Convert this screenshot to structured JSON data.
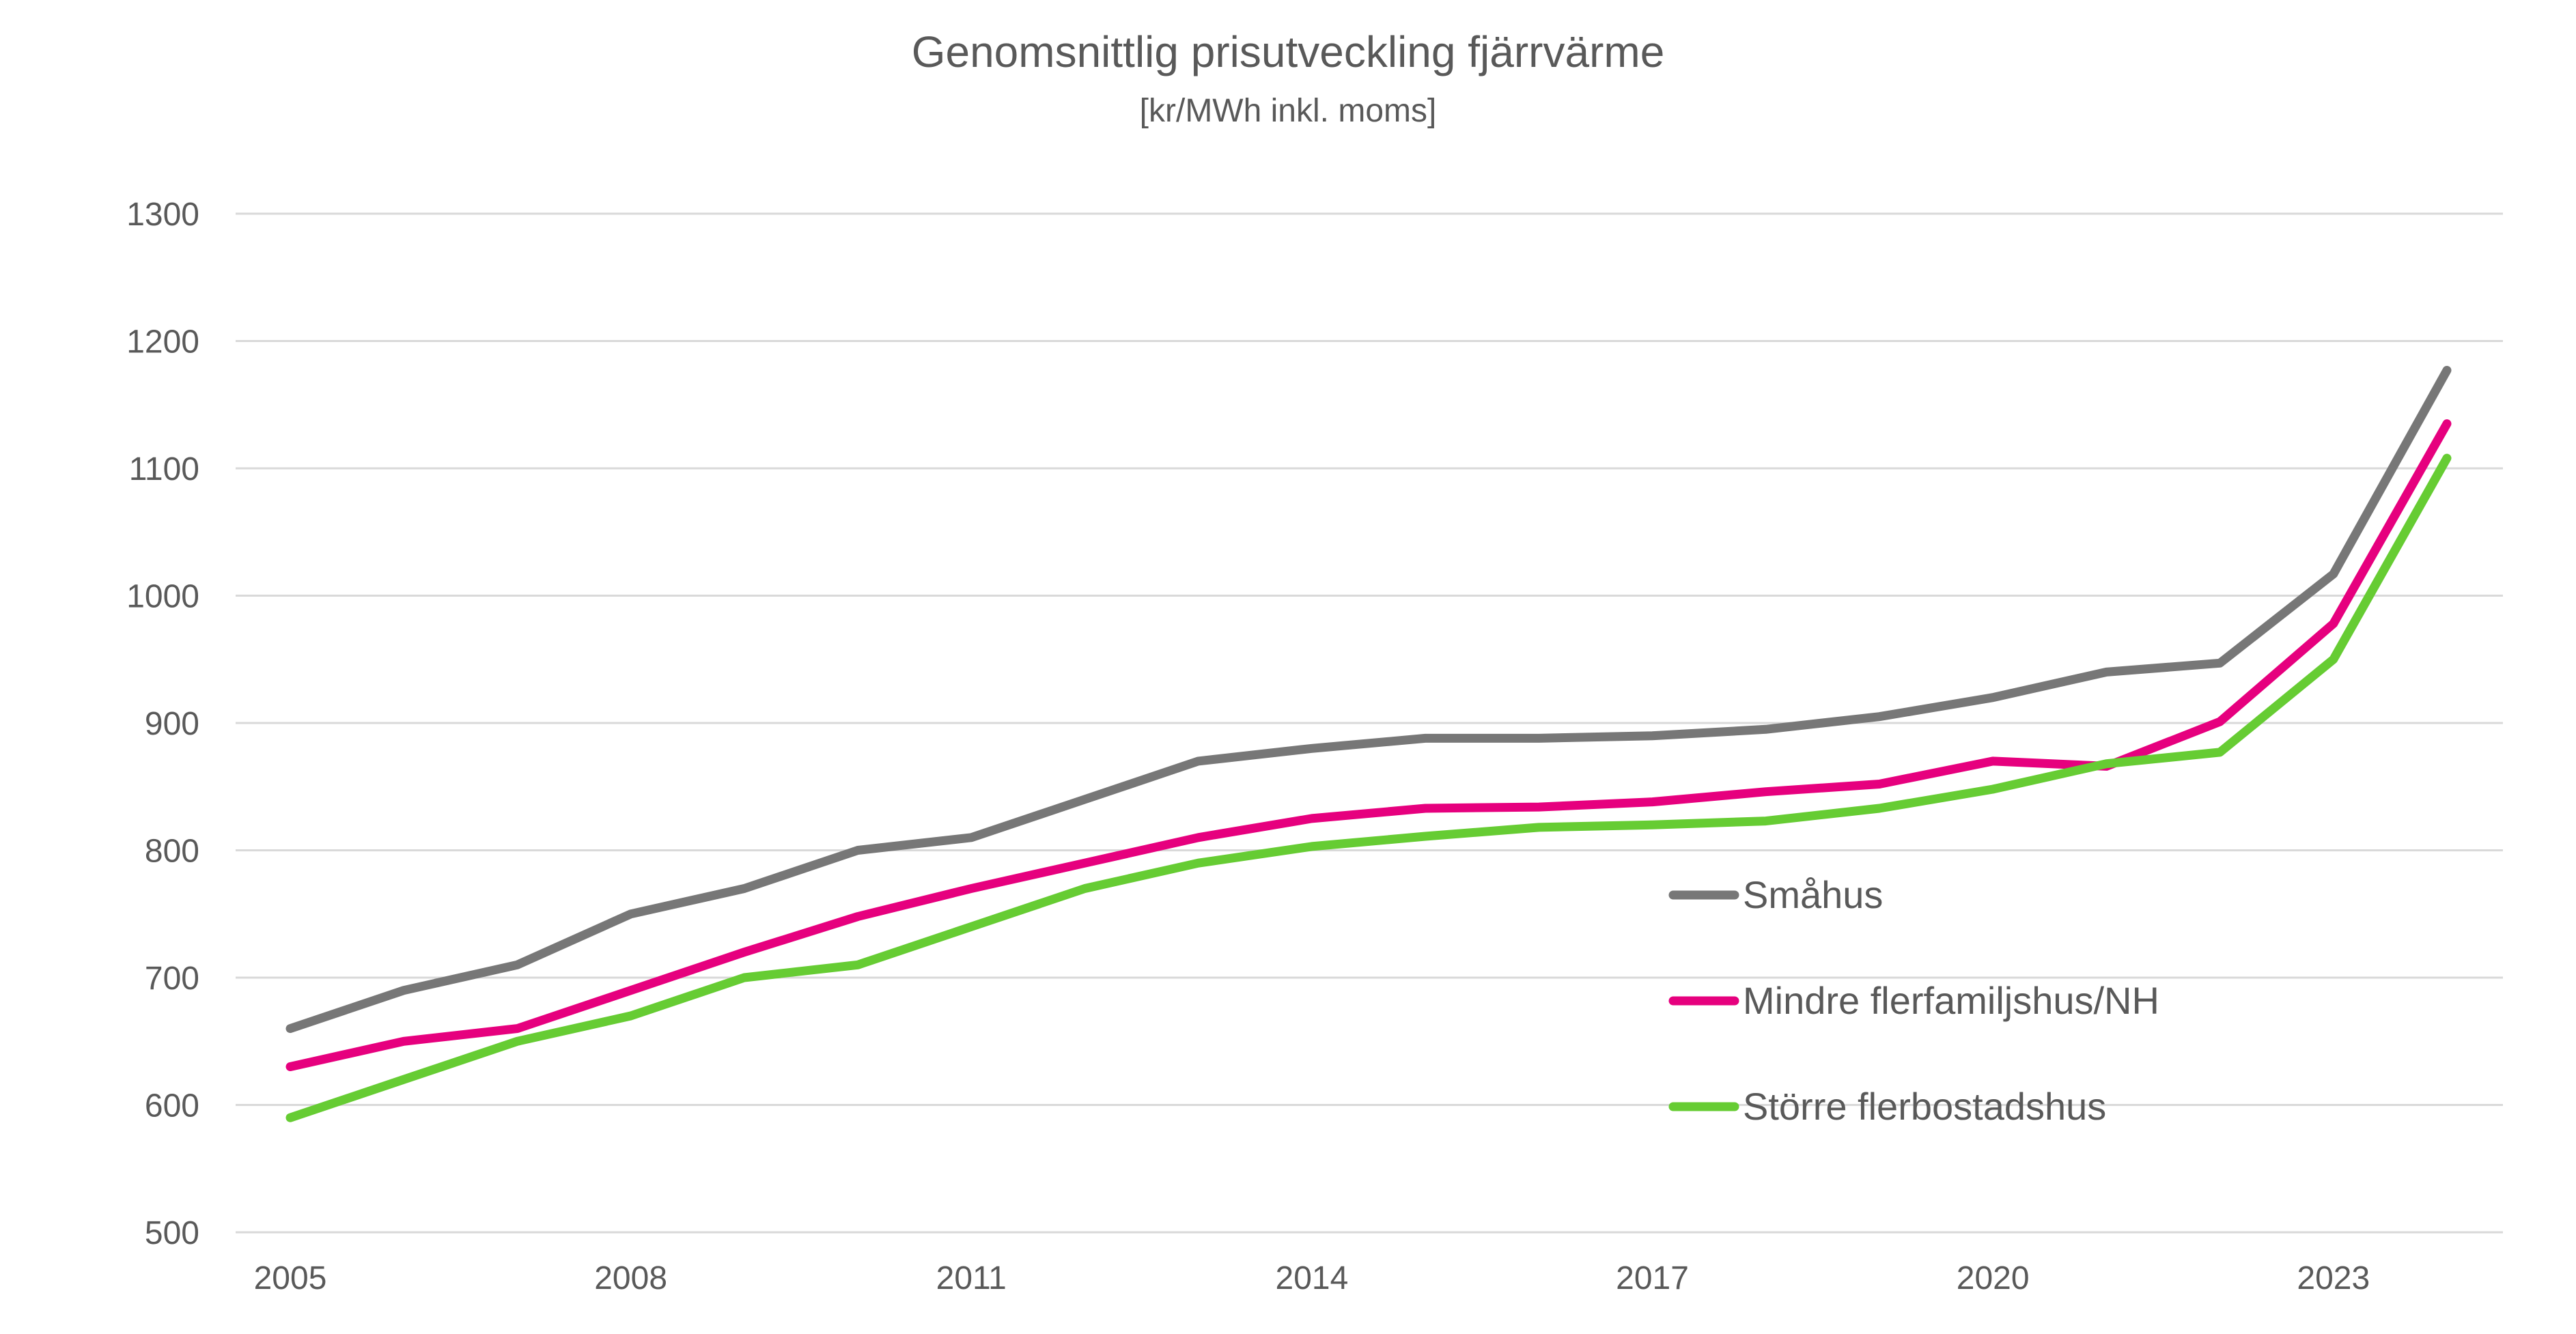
{
  "chart_data": {
    "type": "line",
    "title": "Genomsnittlig prisutveckling fjärrvärme",
    "subtitle": "[kr/MWh inkl. moms]",
    "xlabel": "",
    "ylabel": "",
    "x": [
      2005,
      2006,
      2007,
      2008,
      2009,
      2010,
      2011,
      2012,
      2013,
      2014,
      2015,
      2016,
      2017,
      2018,
      2019,
      2020,
      2021,
      2022,
      2023,
      2024
    ],
    "x_tick_labels": [
      "2005",
      "2008",
      "2011",
      "2014",
      "2017",
      "2020",
      "2023"
    ],
    "ylim": [
      500,
      1300
    ],
    "y_tick_labels": [
      "500",
      "600",
      "700",
      "800",
      "900",
      "1000",
      "1100",
      "1200",
      "1300"
    ],
    "grid": true,
    "legend_position": "right-center",
    "series": [
      {
        "name": "Småhus",
        "color": "#777777",
        "values": [
          660,
          690,
          710,
          750,
          770,
          800,
          810,
          840,
          870,
          880,
          888,
          888,
          890,
          895,
          905,
          920,
          940,
          947,
          1017,
          1177
        ]
      },
      {
        "name": "Mindre flerfamiljshus/NH",
        "color": "#E6007E",
        "values": [
          630,
          650,
          660,
          690,
          720,
          748,
          770,
          790,
          810,
          825,
          833,
          834,
          838,
          846,
          852,
          870,
          866,
          901,
          978,
          1135
        ]
      },
      {
        "name": "Större flerbostadshus",
        "color": "#66CC33",
        "values": [
          590,
          620,
          650,
          670,
          700,
          710,
          740,
          770,
          790,
          803,
          811,
          818,
          820,
          823,
          833,
          848,
          868,
          877,
          950,
          1108
        ]
      }
    ]
  }
}
